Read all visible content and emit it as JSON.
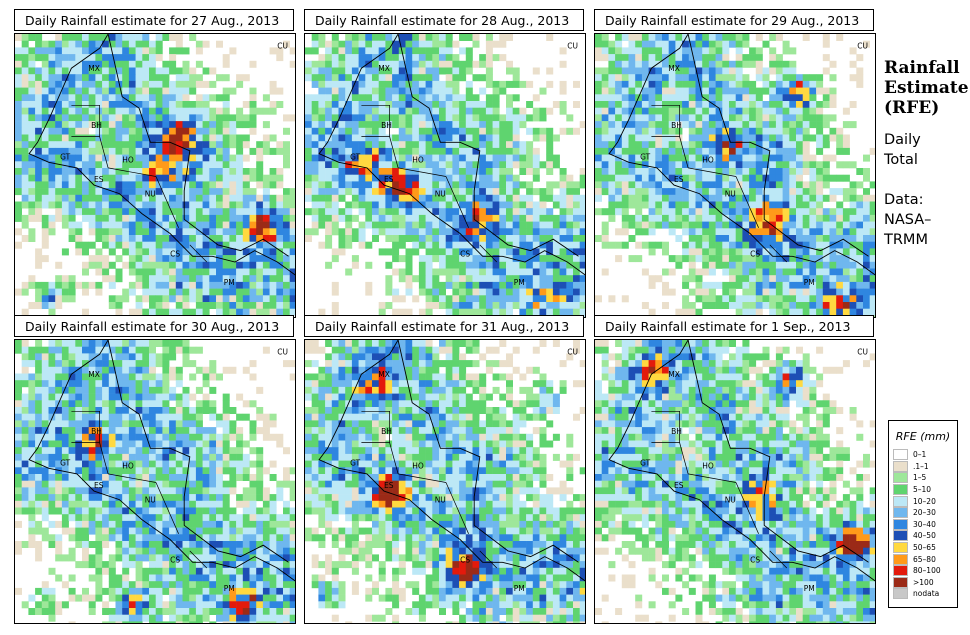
{
  "panels": [
    {
      "title": "Daily Rainfall estimate for  27 Aug., 2013",
      "seed": 27,
      "hot": [
        [
          0.57,
          0.36,
          0.9
        ],
        [
          0.86,
          0.66,
          0.9
        ],
        [
          0.12,
          0.92,
          0.8
        ],
        [
          0.5,
          0.48,
          0.7
        ]
      ]
    },
    {
      "title": "Daily Rainfall estimate for  28 Aug., 2013",
      "seed": 28,
      "hot": [
        [
          0.33,
          0.53,
          0.8
        ],
        [
          0.6,
          0.65,
          0.6
        ],
        [
          0.2,
          0.45,
          0.6
        ],
        [
          0.85,
          0.92,
          0.5
        ]
      ]
    },
    {
      "title": "Daily Rainfall estimate for  29 Aug., 2013",
      "seed": 29,
      "hot": [
        [
          0.7,
          0.2,
          1.0
        ],
        [
          0.6,
          0.65,
          0.7
        ],
        [
          0.85,
          0.95,
          0.8
        ],
        [
          0.45,
          0.4,
          0.6
        ]
      ]
    },
    {
      "title": "Daily Rainfall estimate for  30 Aug., 2013",
      "seed": 30,
      "hot": [
        [
          0.28,
          0.35,
          0.8
        ],
        [
          0.4,
          0.92,
          0.7
        ],
        [
          0.8,
          0.93,
          0.7
        ],
        [
          0.1,
          0.93,
          0.6
        ]
      ]
    },
    {
      "title": "Daily Rainfall estimate for  31 Aug., 2013",
      "seed": 31,
      "hot": [
        [
          0.55,
          0.8,
          1.0
        ],
        [
          0.3,
          0.53,
          0.9
        ],
        [
          0.08,
          0.88,
          0.8
        ],
        [
          0.85,
          0.2,
          0.6
        ],
        [
          0.25,
          0.15,
          0.6
        ]
      ]
    },
    {
      "title": "Daily Rainfall estimate for  1 Sep., 2013",
      "seed": 32,
      "hot": [
        [
          0.68,
          0.13,
          1.0
        ],
        [
          0.9,
          0.7,
          0.8
        ],
        [
          0.2,
          0.1,
          0.7
        ],
        [
          0.55,
          0.55,
          0.6
        ]
      ]
    }
  ],
  "map_labels": [
    "MX",
    "CU",
    "BH",
    "GT",
    "HO",
    "ES",
    "NU",
    "CS",
    "PM"
  ],
  "sidebar": {
    "title_lines": [
      "Rainfall",
      "Estimate",
      "(RFE)"
    ],
    "desc_lines": [
      "Daily",
      "Total"
    ],
    "data_lines": [
      "Data:",
      "NASA–",
      "TRMM"
    ]
  },
  "legend": {
    "title": "RFE (mm)",
    "items": [
      {
        "label": "0–1",
        "color": "#ffffff"
      },
      {
        "label": ".1–1",
        "color": "#eadfcb"
      },
      {
        "label": "1–5",
        "color": "#9ee79a"
      },
      {
        "label": "5–10",
        "color": "#5fd46f"
      },
      {
        "label": "10–20",
        "color": "#bce8f6"
      },
      {
        "label": "20–30",
        "color": "#6fb7ee"
      },
      {
        "label": "30–40",
        "color": "#2f86e0"
      },
      {
        "label": "40–50",
        "color": "#1d4fb5"
      },
      {
        "label": "50–65",
        "color": "#ffd940"
      },
      {
        "label": "65–80",
        "color": "#ff9a1a"
      },
      {
        "label": "80–100",
        "color": "#e31a0c"
      },
      {
        "label": ">100",
        "color": "#9b2a17"
      },
      {
        "label": "nodata",
        "color": "#c8c8c8"
      }
    ]
  }
}
